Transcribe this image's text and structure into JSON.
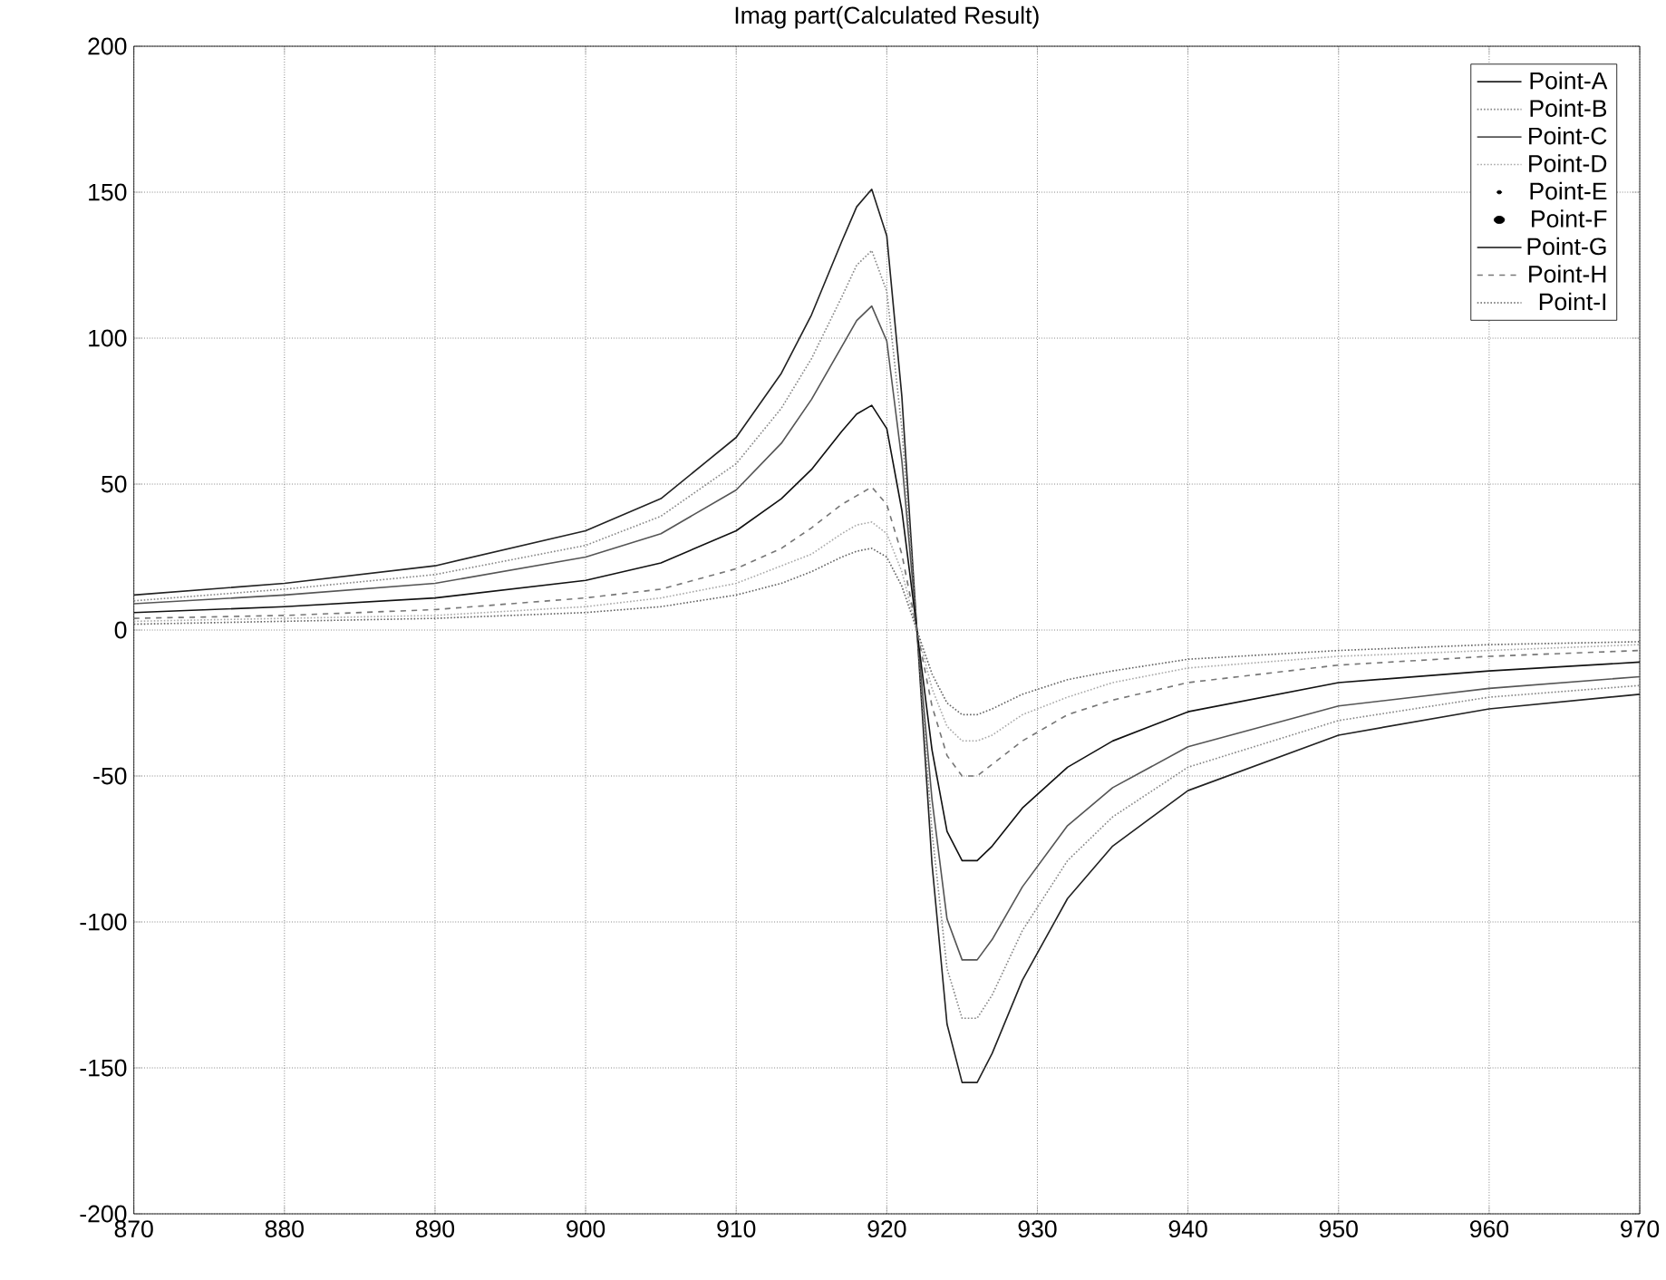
{
  "chart_data": {
    "type": "line",
    "title": "Imag part(Calculated Result)",
    "x": [
      870,
      880,
      890,
      900,
      905,
      910,
      913,
      915,
      917,
      918,
      919,
      920,
      921,
      922,
      923,
      924,
      925,
      926,
      927,
      929,
      932,
      935,
      940,
      950,
      960,
      970
    ],
    "xlim": [
      870,
      970
    ],
    "xticks": [
      870,
      880,
      890,
      900,
      910,
      920,
      930,
      940,
      950,
      960,
      970
    ],
    "ylim": [
      -200,
      200
    ],
    "yticks": [
      -200,
      -150,
      -100,
      -50,
      0,
      50,
      100,
      150,
      200
    ],
    "grid": true,
    "legend": "top right",
    "series": [
      {
        "name": "Point-A",
        "color": "#222222",
        "line_style": "solid",
        "values": [
          12,
          16,
          22,
          34,
          45,
          66,
          88,
          108,
          133,
          145,
          151,
          135,
          80,
          0,
          -80,
          -135,
          -155,
          -155,
          -145,
          -120,
          -92,
          -74,
          -55,
          -36,
          -27,
          -22
        ]
      },
      {
        "name": "Point-B",
        "color": "#888888",
        "line_style": "dotted",
        "values": [
          10,
          14,
          19,
          29,
          39,
          57,
          76,
          93,
          114,
          125,
          130,
          116,
          69,
          0,
          -69,
          -116,
          -133,
          -133,
          -125,
          -103,
          -79,
          -64,
          -47,
          -31,
          -23,
          -19
        ]
      },
      {
        "name": "Point-C",
        "color": "#555555",
        "line_style": "solid",
        "values": [
          9,
          12,
          16,
          25,
          33,
          48,
          64,
          79,
          97,
          106,
          111,
          99,
          58,
          0,
          -58,
          -99,
          -113,
          -113,
          -106,
          -88,
          -67,
          -54,
          -40,
          -26,
          -20,
          -16
        ]
      },
      {
        "name": "Point-D",
        "color": "#aaaaaa",
        "line_style": "dotted",
        "values": [
          3,
          4,
          5,
          8,
          11,
          16,
          22,
          26,
          33,
          36,
          37,
          33,
          20,
          0,
          -20,
          -33,
          -38,
          -38,
          -36,
          -29,
          -23,
          -18,
          -13,
          -9,
          -7,
          -5
        ]
      },
      {
        "name": "Point-E",
        "color": "#000000",
        "marker": "circle",
        "line_style": "none",
        "values": [
          null,
          null,
          null,
          null,
          null,
          null,
          null,
          null,
          null,
          null,
          null,
          null,
          null,
          null,
          null,
          null,
          null,
          null,
          null,
          null,
          null,
          null,
          null,
          null,
          null,
          null
        ]
      },
      {
        "name": "Point-F",
        "values": [
          null,
          null,
          null,
          null,
          null,
          null,
          null,
          null,
          null,
          null,
          null,
          null,
          null,
          null,
          null,
          null,
          null,
          null,
          null,
          null,
          null,
          null,
          null,
          null,
          null,
          null
        ]
      },
      {
        "name": "Point-G",
        "color": "#111111",
        "line_style": "solid",
        "values": [
          6,
          8,
          11,
          17,
          23,
          34,
          45,
          55,
          68,
          74,
          77,
          69,
          41,
          0,
          -41,
          -69,
          -79,
          -79,
          -74,
          -61,
          -47,
          -38,
          -28,
          -18,
          -14,
          -11
        ]
      },
      {
        "name": "Point-H",
        "color": "#777777",
        "line_style": "dashed",
        "values": [
          4,
          5,
          7,
          11,
          14,
          21,
          28,
          35,
          43,
          46,
          49,
          43,
          26,
          0,
          -26,
          -43,
          -50,
          -50,
          -46,
          -38,
          -29,
          -24,
          -18,
          -12,
          -9,
          -7
        ]
      },
      {
        "name": "Point-I",
        "color": "#666666",
        "line_style": "dotted",
        "values": [
          2,
          3,
          4,
          6,
          8,
          12,
          16,
          20,
          25,
          27,
          28,
          25,
          15,
          0,
          -15,
          -25,
          -29,
          -29,
          -27,
          -22,
          -17,
          -14,
          -10,
          -7,
          -5,
          -4
        ]
      }
    ]
  }
}
